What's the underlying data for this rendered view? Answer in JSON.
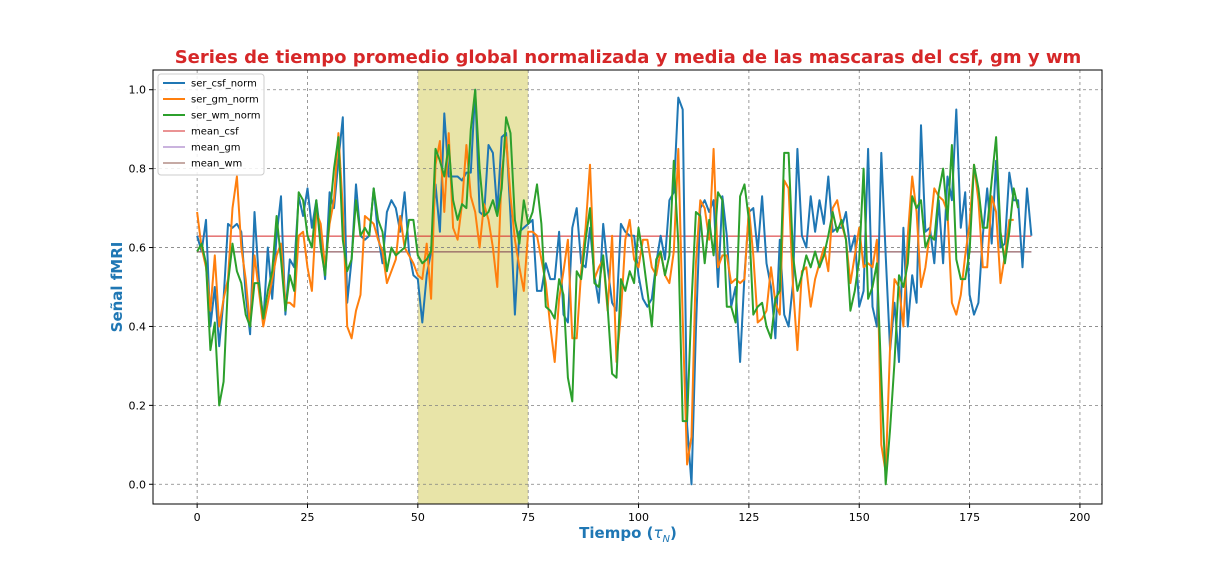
{
  "chart_data": {
    "type": "line",
    "title": "Series de tiempo promedio global normalizada y media de las mascaras del csf, gm y wm",
    "xlabel": "Tiempo (τ_N)",
    "xlabel_main": "Tiempo (",
    "xlabel_sym": "τ",
    "xlabel_sub": "N",
    "xlabel_close": ")",
    "ylabel": "Señal fMRI",
    "title_color": "#d62728",
    "label_color": "#1f77b4",
    "xlim": [
      -10,
      205
    ],
    "ylim": [
      -0.05,
      1.05
    ],
    "xticks": [
      0,
      25,
      50,
      75,
      100,
      125,
      150,
      175,
      200
    ],
    "yticks": [
      0.0,
      0.2,
      0.4,
      0.6,
      0.8,
      1.0
    ],
    "xtick_labels": [
      "0",
      "25",
      "50",
      "75",
      "100",
      "125",
      "150",
      "175",
      "200"
    ],
    "ytick_labels": [
      "0.0",
      "0.2",
      "0.4",
      "0.6",
      "0.8",
      "1.0"
    ],
    "grid": true,
    "legend_position": "top-left",
    "highlight_span": {
      "x0": 50,
      "x1": 75,
      "color": "#e8e4a8"
    },
    "series": [
      {
        "name": "ser_csf_norm",
        "color": "#1f77b4",
        "values": [
          0.63,
          0.59,
          0.67,
          0.4,
          0.5,
          0.35,
          0.47,
          0.66,
          0.65,
          0.66,
          0.64,
          0.48,
          0.38,
          0.69,
          0.52,
          0.41,
          0.6,
          0.47,
          0.63,
          0.73,
          0.43,
          0.57,
          0.55,
          0.73,
          0.68,
          0.75,
          0.65,
          0.72,
          0.63,
          0.52,
          0.74,
          0.7,
          0.82,
          0.93,
          0.46,
          0.57,
          0.76,
          0.63,
          0.62,
          0.63,
          0.75,
          0.63,
          0.56,
          0.69,
          0.72,
          0.7,
          0.64,
          0.74,
          0.59,
          0.53,
          0.52,
          0.41,
          0.53,
          0.59,
          0.76,
          0.64,
          0.94,
          0.78,
          0.78,
          0.78,
          0.77,
          0.79,
          0.79,
          1.0,
          0.69,
          0.68,
          0.86,
          0.84,
          0.69,
          0.88,
          0.89,
          0.68,
          0.43,
          0.64,
          0.65,
          0.66,
          0.67,
          0.49,
          0.49,
          0.56,
          0.52,
          0.52,
          0.64,
          0.43,
          0.41,
          0.65,
          0.7,
          0.56,
          0.55,
          0.65,
          0.53,
          0.46,
          0.66,
          0.55,
          0.46,
          0.44,
          0.66,
          0.64,
          0.63,
          0.63,
          0.53,
          0.47,
          0.45,
          0.47,
          0.56,
          0.63,
          0.57,
          0.72,
          0.74,
          0.98,
          0.95,
          0.15,
          0.0,
          0.39,
          0.7,
          0.72,
          0.69,
          0.72,
          0.5,
          0.73,
          0.63,
          0.45,
          0.5,
          0.31,
          0.53,
          0.69,
          0.7,
          0.59,
          0.73,
          0.56,
          0.5,
          0.37,
          0.62,
          0.43,
          0.4,
          0.51,
          0.85,
          0.63,
          0.6,
          0.73,
          0.64,
          0.72,
          0.66,
          0.78,
          0.64,
          0.65,
          0.65,
          0.69,
          0.59,
          0.63,
          0.45,
          0.49,
          0.85,
          0.45,
          0.4,
          0.84,
          0.58,
          0.34,
          0.46,
          0.31,
          0.65,
          0.4,
          0.53,
          0.46,
          0.91,
          0.64,
          0.65,
          0.56,
          0.72,
          0.56,
          0.78,
          0.72,
          0.95,
          0.65,
          0.74,
          0.48,
          0.43,
          0.46,
          0.63,
          0.75,
          0.61,
          0.82,
          0.6,
          0.61,
          0.79,
          0.72,
          0.72,
          0.55,
          0.75,
          0.63
        ]
      },
      {
        "name": "ser_gm_norm",
        "color": "#ff7f0e",
        "values": [
          0.69,
          0.6,
          0.55,
          0.44,
          0.58,
          0.4,
          0.47,
          0.52,
          0.7,
          0.78,
          0.6,
          0.52,
          0.4,
          0.58,
          0.49,
          0.4,
          0.46,
          0.52,
          0.58,
          0.61,
          0.46,
          0.46,
          0.45,
          0.63,
          0.64,
          0.55,
          0.49,
          0.69,
          0.66,
          0.55,
          0.66,
          0.72,
          0.89,
          0.7,
          0.4,
          0.37,
          0.44,
          0.48,
          0.68,
          0.67,
          0.66,
          0.62,
          0.59,
          0.51,
          0.54,
          0.57,
          0.68,
          0.6,
          0.58,
          0.56,
          0.53,
          0.52,
          0.61,
          0.47,
          0.81,
          0.87,
          0.69,
          0.89,
          0.65,
          0.62,
          0.71,
          0.86,
          0.73,
          0.69,
          0.6,
          0.71,
          0.67,
          0.6,
          0.5,
          0.79,
          0.88,
          0.73,
          0.62,
          0.55,
          0.49,
          0.64,
          0.64,
          0.63,
          0.57,
          0.51,
          0.4,
          0.31,
          0.47,
          0.54,
          0.62,
          0.37,
          0.37,
          0.54,
          0.65,
          0.81,
          0.52,
          0.55,
          0.57,
          0.44,
          0.63,
          0.31,
          0.43,
          0.62,
          0.67,
          0.57,
          0.55,
          0.62,
          0.62,
          0.55,
          0.53,
          0.59,
          0.53,
          0.51,
          0.59,
          0.85,
          0.42,
          0.05,
          0.12,
          0.56,
          0.72,
          0.7,
          0.62,
          0.85,
          0.55,
          0.58,
          0.58,
          0.51,
          0.52,
          0.51,
          0.52,
          0.7,
          0.58,
          0.41,
          0.42,
          0.44,
          0.55,
          0.46,
          0.43,
          0.77,
          0.75,
          0.5,
          0.34,
          0.54,
          0.55,
          0.45,
          0.52,
          0.56,
          0.6,
          0.54,
          0.7,
          0.72,
          0.66,
          0.62,
          0.51,
          0.58,
          0.65,
          0.55,
          0.56,
          0.55,
          0.62,
          0.1,
          0.03,
          0.35,
          0.52,
          0.5,
          0.4,
          0.63,
          0.78,
          0.69,
          0.5,
          0.55,
          0.64,
          0.75,
          0.73,
          0.72,
          0.69,
          0.46,
          0.43,
          0.48,
          0.58,
          0.66,
          0.81,
          0.72,
          0.55,
          0.55,
          0.73,
          0.69,
          0.51,
          0.58,
          0.67,
          0.67
        ]
      },
      {
        "name": "ser_wm_norm",
        "color": "#2ca02c",
        "values": [
          0.59,
          0.61,
          0.56,
          0.34,
          0.41,
          0.2,
          0.26,
          0.51,
          0.61,
          0.54,
          0.51,
          0.43,
          0.4,
          0.51,
          0.51,
          0.42,
          0.49,
          0.54,
          0.68,
          0.57,
          0.44,
          0.53,
          0.49,
          0.74,
          0.72,
          0.63,
          0.6,
          0.72,
          0.6,
          0.53,
          0.68,
          0.8,
          0.88,
          0.62,
          0.54,
          0.57,
          0.72,
          0.63,
          0.65,
          0.63,
          0.75,
          0.67,
          0.64,
          0.54,
          0.6,
          0.58,
          0.59,
          0.6,
          0.67,
          0.67,
          0.58,
          0.56,
          0.57,
          0.59,
          0.85,
          0.82,
          0.78,
          0.86,
          0.72,
          0.67,
          0.71,
          0.7,
          0.9,
          1.0,
          0.8,
          0.68,
          0.69,
          0.72,
          0.68,
          0.75,
          0.93,
          0.89,
          0.67,
          0.61,
          0.72,
          0.66,
          0.69,
          0.76,
          0.66,
          0.45,
          0.44,
          0.42,
          0.52,
          0.48,
          0.27,
          0.21,
          0.54,
          0.52,
          0.62,
          0.7,
          0.51,
          0.5,
          0.58,
          0.45,
          0.28,
          0.27,
          0.52,
          0.49,
          0.54,
          0.51,
          0.65,
          0.58,
          0.49,
          0.4,
          0.57,
          0.59,
          0.53,
          0.58,
          0.82,
          0.61,
          0.16,
          0.16,
          0.46,
          0.69,
          0.68,
          0.56,
          0.67,
          0.58,
          0.74,
          0.72,
          0.45,
          0.45,
          0.41,
          0.73,
          0.76,
          0.67,
          0.43,
          0.45,
          0.46,
          0.4,
          0.37,
          0.47,
          0.49,
          0.84,
          0.84,
          0.58,
          0.49,
          0.53,
          0.58,
          0.55,
          0.59,
          0.55,
          0.58,
          0.63,
          0.69,
          0.64,
          0.67,
          0.62,
          0.44,
          0.49,
          0.57,
          0.8,
          0.47,
          0.5,
          0.56,
          0.27,
          0.0,
          0.14,
          0.31,
          0.53,
          0.5,
          0.56,
          0.73,
          0.7,
          0.72,
          0.6,
          0.63,
          0.62,
          0.74,
          0.8,
          0.67,
          0.86,
          0.57,
          0.52,
          0.52,
          0.59,
          0.81,
          0.75,
          0.65,
          0.65,
          0.77,
          0.88,
          0.64,
          0.56,
          0.64,
          0.75,
          0.7
        ]
      }
    ],
    "mean_lines": [
      {
        "name": "mean_csf",
        "color": "#d62728",
        "value": 0.629
      },
      {
        "name": "mean_gm",
        "color": "#9467bd",
        "value": 0.589
      },
      {
        "name": "mean_wm",
        "color": "#8c564b",
        "value": 0.589
      }
    ]
  }
}
